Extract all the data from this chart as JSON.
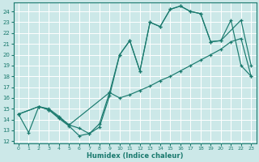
{
  "xlabel": "Humidex (Indice chaleur)",
  "bg_color": "#cce8e8",
  "grid_color": "#b8d8d8",
  "line_color": "#1a7a6e",
  "xlim": [
    -0.5,
    23.5
  ],
  "ylim": [
    11.8,
    24.8
  ],
  "yticks": [
    12,
    13,
    14,
    15,
    16,
    17,
    18,
    19,
    20,
    21,
    22,
    23,
    24
  ],
  "xticks": [
    0,
    1,
    2,
    3,
    4,
    5,
    6,
    7,
    8,
    9,
    10,
    11,
    12,
    13,
    14,
    15,
    16,
    17,
    18,
    19,
    20,
    21,
    22,
    23
  ],
  "curve1_x": [
    0,
    1,
    2,
    3,
    4,
    5,
    6,
    7,
    8,
    9,
    10,
    11,
    12,
    13,
    14,
    15,
    16,
    17,
    18,
    19,
    20,
    22,
    23
  ],
  "curve1_y": [
    14.5,
    12.8,
    15.2,
    14.9,
    14.1,
    13.4,
    12.5,
    12.7,
    13.3,
    16.2,
    20.0,
    21.3,
    18.5,
    23.0,
    22.6,
    24.2,
    24.5,
    24.0,
    23.8,
    21.2,
    21.3,
    23.2,
    19.0
  ],
  "curve2_x": [
    0,
    2,
    3,
    4,
    5,
    9,
    10,
    11,
    12,
    13,
    14,
    15,
    16,
    17,
    18,
    19,
    20,
    21,
    22,
    23
  ],
  "curve2_y": [
    14.5,
    15.2,
    15.0,
    14.3,
    13.5,
    16.5,
    16.0,
    16.3,
    16.7,
    17.1,
    17.6,
    18.0,
    18.5,
    19.0,
    19.5,
    20.0,
    20.5,
    21.2,
    21.5,
    18.0
  ],
  "curve3_x": [
    0,
    2,
    3,
    4,
    5,
    6,
    7,
    8,
    9,
    10,
    11,
    12,
    13,
    14,
    15,
    16,
    17,
    18,
    19,
    20,
    21,
    22,
    23
  ],
  "curve3_y": [
    14.5,
    15.2,
    14.9,
    14.2,
    13.5,
    13.2,
    12.7,
    13.6,
    16.5,
    20.0,
    21.3,
    18.5,
    23.0,
    22.6,
    24.2,
    24.5,
    24.0,
    23.8,
    21.2,
    21.3,
    23.2,
    19.0,
    18.0
  ]
}
